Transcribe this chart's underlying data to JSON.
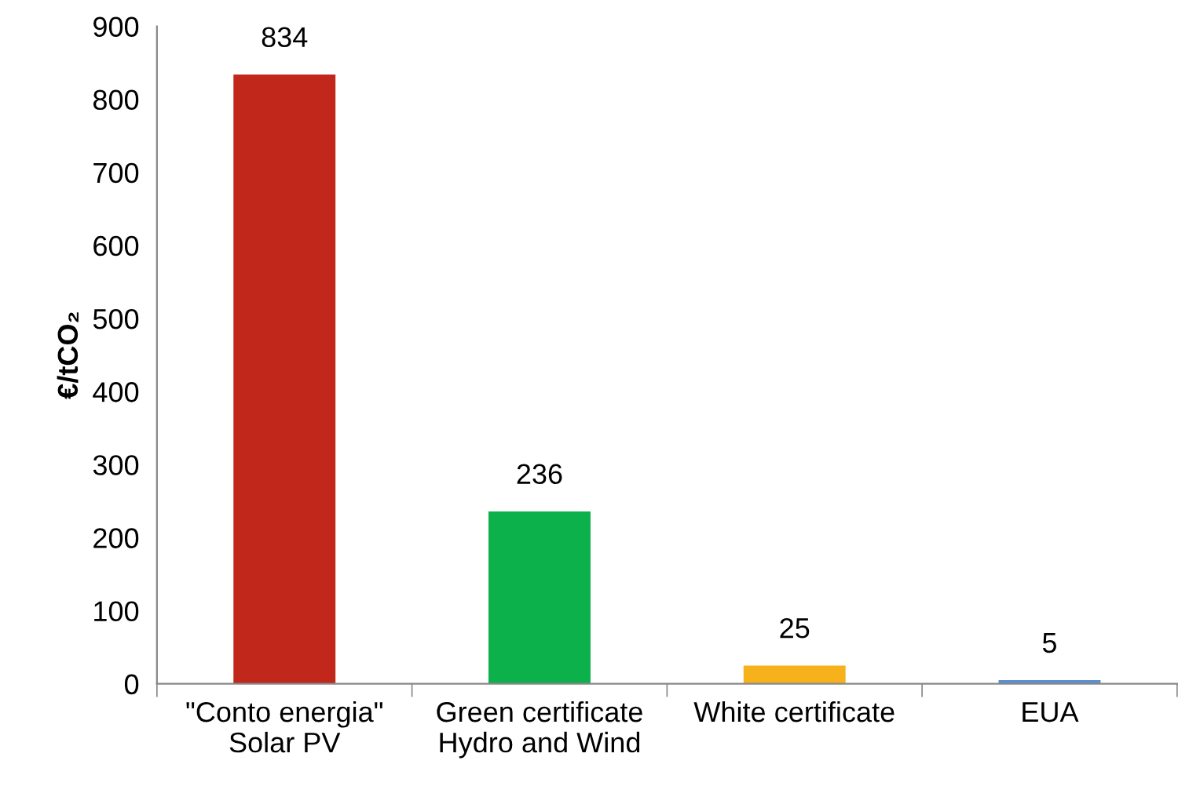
{
  "chart_data": {
    "type": "bar",
    "ylabel": "€/tCO₂",
    "categories": [
      "\"Conto energia\"\nSolar PV",
      "Green certificate\nHydro and Wind",
      "White certificate",
      "EUA"
    ],
    "values": [
      834,
      236,
      25,
      5
    ],
    "colors": [
      "#c1271a",
      "#0cb14b",
      "#f6b11b",
      "#5b8fd1"
    ],
    "ylim": [
      0,
      900
    ],
    "yticks": [
      0,
      100,
      200,
      300,
      400,
      500,
      600,
      700,
      800,
      900
    ],
    "data_labels": true,
    "grid": false,
    "legend": false
  }
}
